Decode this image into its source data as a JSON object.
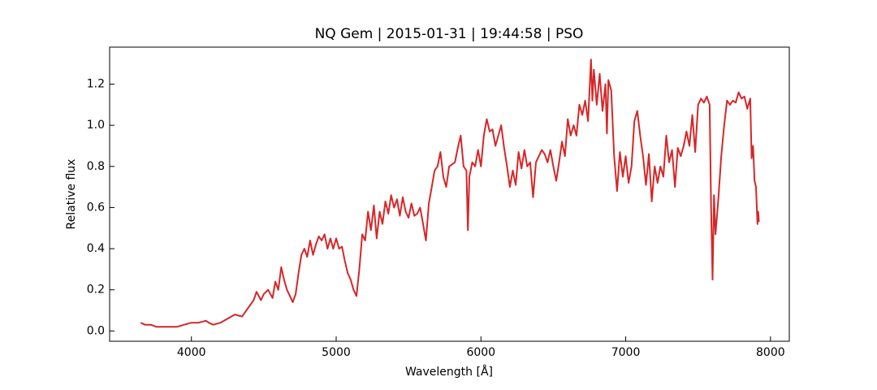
{
  "chart_data": {
    "type": "line",
    "title": "NQ Gem | 2015-01-31 | 19:44:58 | PSO",
    "x_label": "Wavelength [Å]",
    "y_label": "Relative flux",
    "xlim": [
      3435,
      8130
    ],
    "ylim": [
      -0.05,
      1.38
    ],
    "xticks": [
      4000,
      5000,
      6000,
      7000,
      8000
    ],
    "yticks": [
      {
        "value": 0,
        "label": "0.0"
      },
      0.2,
      0.4,
      0.6,
      0.8,
      {
        "value": 1,
        "label": "1.0"
      },
      1.2
    ],
    "grid": false,
    "series": [
      {
        "color": "#d62728",
        "x": [
          3650,
          3680,
          3720,
          3760,
          3800,
          3850,
          3900,
          3950,
          4000,
          4050,
          4100,
          4120,
          4150,
          4200,
          4250,
          4300,
          4350,
          4400,
          4430,
          4450,
          4480,
          4500,
          4530,
          4560,
          4580,
          4600,
          4620,
          4640,
          4660,
          4680,
          4700,
          4720,
          4740,
          4760,
          4780,
          4800,
          4820,
          4840,
          4860,
          4880,
          4900,
          4920,
          4940,
          4960,
          4980,
          5000,
          5020,
          5040,
          5060,
          5080,
          5100,
          5120,
          5140,
          5160,
          5180,
          5200,
          5220,
          5240,
          5260,
          5280,
          5300,
          5320,
          5340,
          5360,
          5380,
          5400,
          5420,
          5440,
          5460,
          5480,
          5500,
          5520,
          5540,
          5560,
          5580,
          5600,
          5620,
          5640,
          5660,
          5680,
          5700,
          5720,
          5740,
          5760,
          5780,
          5800,
          5820,
          5840,
          5860,
          5880,
          5900,
          5910,
          5920,
          5940,
          5960,
          5980,
          6000,
          6020,
          6040,
          6060,
          6080,
          6100,
          6120,
          6140,
          6160,
          6180,
          6200,
          6220,
          6240,
          6260,
          6280,
          6300,
          6320,
          6340,
          6360,
          6380,
          6400,
          6420,
          6440,
          6460,
          6480,
          6500,
          6520,
          6540,
          6560,
          6580,
          6600,
          6620,
          6640,
          6660,
          6680,
          6700,
          6720,
          6740,
          6760,
          6770,
          6780,
          6800,
          6820,
          6840,
          6860,
          6870,
          6880,
          6900,
          6920,
          6940,
          6960,
          6980,
          7000,
          7020,
          7040,
          7060,
          7080,
          7100,
          7120,
          7140,
          7160,
          7180,
          7200,
          7220,
          7240,
          7260,
          7280,
          7300,
          7320,
          7340,
          7360,
          7380,
          7400,
          7420,
          7440,
          7460,
          7480,
          7500,
          7520,
          7540,
          7560,
          7580,
          7590,
          7600,
          7610,
          7620,
          7640,
          7660,
          7680,
          7700,
          7720,
          7740,
          7760,
          7780,
          7800,
          7820,
          7840,
          7860,
          7870,
          7880,
          7890,
          7900,
          7910,
          7915,
          7920
        ],
        "values": [
          0.04,
          0.03,
          0.03,
          0.02,
          0.02,
          0.02,
          0.02,
          0.03,
          0.04,
          0.04,
          0.05,
          0.04,
          0.03,
          0.04,
          0.06,
          0.08,
          0.07,
          0.12,
          0.15,
          0.19,
          0.15,
          0.18,
          0.2,
          0.16,
          0.24,
          0.2,
          0.31,
          0.25,
          0.2,
          0.17,
          0.14,
          0.18,
          0.28,
          0.37,
          0.4,
          0.36,
          0.44,
          0.37,
          0.42,
          0.46,
          0.44,
          0.47,
          0.4,
          0.45,
          0.4,
          0.45,
          0.4,
          0.41,
          0.34,
          0.28,
          0.25,
          0.2,
          0.17,
          0.3,
          0.47,
          0.44,
          0.58,
          0.49,
          0.61,
          0.45,
          0.58,
          0.52,
          0.63,
          0.57,
          0.66,
          0.6,
          0.64,
          0.56,
          0.65,
          0.58,
          0.55,
          0.62,
          0.56,
          0.57,
          0.6,
          0.52,
          0.44,
          0.62,
          0.7,
          0.78,
          0.8,
          0.87,
          0.75,
          0.7,
          0.8,
          0.81,
          0.82,
          0.89,
          0.95,
          0.8,
          0.78,
          0.49,
          0.75,
          0.82,
          0.8,
          0.88,
          0.8,
          0.95,
          1.03,
          0.97,
          0.98,
          0.9,
          0.95,
          1.0,
          0.89,
          0.8,
          0.7,
          0.78,
          0.71,
          0.87,
          0.79,
          0.88,
          0.8,
          0.82,
          0.65,
          0.82,
          0.85,
          0.88,
          0.86,
          0.82,
          0.88,
          0.8,
          0.73,
          0.82,
          0.92,
          0.85,
          1.03,
          0.95,
          1.0,
          0.95,
          1.1,
          1.05,
          1.12,
          1.02,
          1.32,
          1.12,
          1.27,
          1.1,
          1.25,
          1.07,
          1.2,
          0.96,
          1.22,
          1.17,
          0.85,
          0.68,
          0.87,
          0.75,
          0.85,
          0.72,
          0.8,
          1.02,
          1.07,
          0.95,
          0.85,
          0.71,
          0.86,
          0.63,
          0.8,
          0.72,
          0.8,
          0.75,
          0.95,
          0.82,
          0.88,
          0.7,
          0.89,
          0.85,
          0.9,
          0.97,
          0.9,
          1.05,
          0.87,
          1.1,
          1.13,
          1.11,
          1.14,
          1.1,
          0.6,
          0.25,
          0.66,
          0.47,
          0.64,
          0.85,
          1.0,
          1.12,
          1.1,
          1.12,
          1.11,
          1.16,
          1.13,
          1.14,
          1.08,
          1.13,
          0.84,
          0.9,
          0.73,
          0.7,
          0.52,
          0.58,
          0.53
        ]
      }
    ]
  }
}
